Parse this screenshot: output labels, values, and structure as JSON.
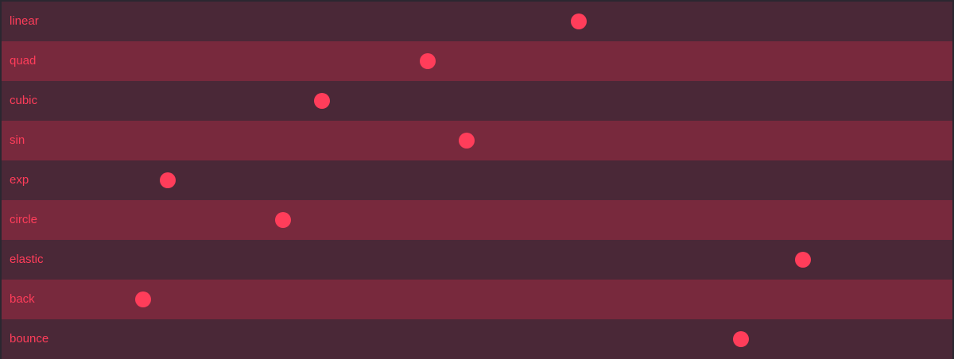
{
  "theme": {
    "background_dark": "#4a2837",
    "background_light": "#78293d",
    "accent": "#ff3d5a"
  },
  "easings": [
    {
      "label": "linear",
      "progress": 0.607
    },
    {
      "label": "quad",
      "progress": 0.448
    },
    {
      "label": "cubic",
      "progress": 0.337
    },
    {
      "label": "sin",
      "progress": 0.489
    },
    {
      "label": "exp",
      "progress": 0.175
    },
    {
      "label": "circle",
      "progress": 0.296
    },
    {
      "label": "elastic",
      "progress": 0.843
    },
    {
      "label": "back",
      "progress": 0.149
    },
    {
      "label": "bounce",
      "progress": 0.778
    }
  ]
}
